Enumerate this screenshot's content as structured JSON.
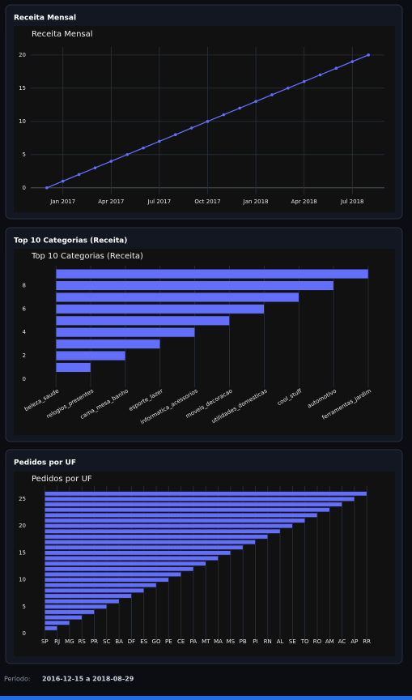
{
  "chart_data": [
    {
      "type": "line",
      "title": "Receita Mensal",
      "x": [
        "2016-12",
        "2017-01",
        "2017-02",
        "2017-03",
        "2017-04",
        "2017-05",
        "2017-06",
        "2017-07",
        "2017-08",
        "2017-09",
        "2017-10",
        "2017-11",
        "2017-12",
        "2018-01",
        "2018-02",
        "2018-03",
        "2018-04",
        "2018-05",
        "2018-06",
        "2018-07",
        "2018-08"
      ],
      "values": [
        0,
        1,
        2,
        3,
        4,
        5,
        6,
        7,
        8,
        9,
        10,
        11,
        12,
        13,
        14,
        15,
        16,
        17,
        18,
        19,
        20
      ],
      "color": "#636efa",
      "xlim": [
        "2016-11",
        "2018-09"
      ],
      "xticks": [
        {
          "value": "2017-01",
          "label": "Jan 2017"
        },
        {
          "value": "2017-04",
          "label": "Apr 2017"
        },
        {
          "value": "2017-07",
          "label": "Jul 2017"
        },
        {
          "value": "2017-10",
          "label": "Oct 2017"
        },
        {
          "value": "2018-01",
          "label": "Jan 2018"
        },
        {
          "value": "2018-04",
          "label": "Apr 2018"
        },
        {
          "value": "2018-07",
          "label": "Jul 2018"
        }
      ],
      "ylim": [
        -1,
        21.2
      ],
      "yticks": [
        0,
        5,
        10,
        15,
        20
      ],
      "grid": "both"
    },
    {
      "type": "hbar",
      "title": "Top 10 Categorias (Receita)",
      "categories": [
        "beleza_saude",
        "relogios_presentes",
        "cama_mesa_banho",
        "esporte_lazer",
        "informatica_acessorios",
        "moveis_decoracao",
        "utilidades_domesticas",
        "cool_stuff",
        "automotivo",
        "ferramentas_jardim"
      ],
      "values": [
        0,
        1,
        2,
        3,
        4,
        5,
        6,
        7,
        8,
        9
      ],
      "color": "#636efa",
      "xlim": [
        -0.68,
        9.7
      ],
      "ylim": [
        -0.7,
        9.7
      ],
      "yticks": [
        0,
        2,
        4,
        6,
        8
      ],
      "grid": "x",
      "rotate_labels": true
    },
    {
      "type": "hbar",
      "title": "Pedidos por UF",
      "categories": [
        "SP",
        "RJ",
        "MG",
        "RS",
        "PR",
        "SC",
        "BA",
        "DF",
        "ES",
        "GO",
        "PE",
        "CE",
        "PA",
        "MT",
        "MA",
        "MS",
        "PB",
        "PI",
        "RN",
        "AL",
        "SE",
        "TO",
        "RO",
        "AM",
        "AC",
        "AP",
        "RR"
      ],
      "values": [
        0,
        1,
        2,
        3,
        4,
        5,
        6,
        7,
        8,
        9,
        10,
        11,
        12,
        13,
        14,
        15,
        16,
        17,
        18,
        19,
        20,
        21,
        22,
        23,
        24,
        25,
        26
      ],
      "color": "#636efa",
      "xlim": [
        -1,
        27.1
      ],
      "ylim": [
        -1.2,
        27.4
      ],
      "yticks": [
        0,
        5,
        10,
        15,
        20,
        25
      ],
      "grid": "x",
      "rotate_labels": false
    }
  ],
  "footer": {
    "label": "Período:",
    "value": "2016-12-15 a 2018-08-29"
  }
}
